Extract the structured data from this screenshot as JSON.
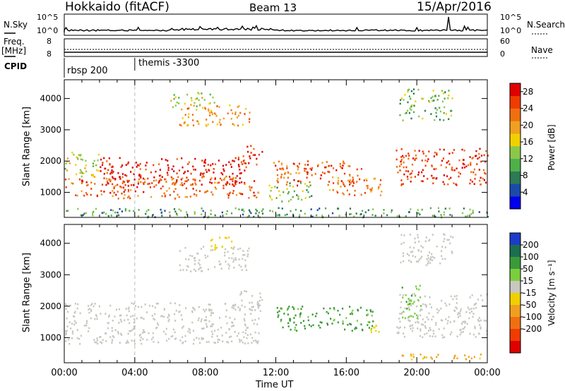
{
  "header": {
    "station": "Hokkaido (fitACF)",
    "beam": "Beam 13",
    "date": "15/Apr/2016"
  },
  "strip_labels": {
    "nsky": "N.Sky",
    "nsky_hi": "10^5",
    "nsky_lo": "10^0",
    "nsearch": "N.Search",
    "freq": "Freq.",
    "freq_unit": "[MHz]",
    "freq_hi": "8",
    "freq_lo": "8",
    "nave_hi": "60",
    "nave_lo": "0",
    "nave": "Nave",
    "cpid": "CPID",
    "cpid_1": "rbsp 200",
    "cpid_2": "themis -3300"
  },
  "chart_data": [
    {
      "type": "heatmap",
      "panel": "power",
      "ylabel": "Slant Range [km]",
      "xlabel": "",
      "x_range": [
        "00:00",
        "24:00"
      ],
      "ylim": [
        200,
        4600
      ],
      "y_ticks": [
        1000,
        2000,
        3000,
        4000
      ],
      "colorbar": {
        "label": "Power [dB]",
        "ticks": [
          4,
          8,
          12,
          16,
          20,
          24,
          28
        ],
        "range": [
          0,
          30
        ],
        "colors": [
          "#0000ee",
          "#1c4aa8",
          "#2d7a55",
          "#4fb04a",
          "#8ac84a",
          "#f0d000",
          "#f0a020",
          "#f07010",
          "#f03c00",
          "#e00000"
        ]
      },
      "regions": [
        {
          "t0": 0.0,
          "t1": 11.0,
          "r0": 800,
          "r1": 1500,
          "level": 24
        },
        {
          "t0": 0.0,
          "t1": 2.0,
          "r0": 1500,
          "r1": 2300,
          "level": 16
        },
        {
          "t0": 2.0,
          "t1": 10.2,
          "r0": 1200,
          "r1": 2100,
          "level": 28
        },
        {
          "t0": 9.8,
          "t1": 11.2,
          "r0": 1800,
          "r1": 2500,
          "level": 26
        },
        {
          "t0": 6.5,
          "t1": 10.5,
          "r0": 3100,
          "r1": 3800,
          "level": 20
        },
        {
          "t0": 6.0,
          "t1": 8.5,
          "r0": 3700,
          "r1": 4200,
          "level": 14
        },
        {
          "t0": 11.8,
          "t1": 17.0,
          "r0": 1200,
          "r1": 2000,
          "level": 24
        },
        {
          "t0": 15.0,
          "t1": 18.0,
          "r0": 900,
          "r1": 1500,
          "level": 22
        },
        {
          "t0": 11.5,
          "t1": 14.0,
          "r0": 700,
          "r1": 1300,
          "level": 12
        },
        {
          "t0": 18.8,
          "t1": 24.0,
          "r0": 1200,
          "r1": 2400,
          "level": 26
        },
        {
          "t0": 19.0,
          "t1": 22.0,
          "r0": 3300,
          "r1": 4300,
          "level": 12
        },
        {
          "t0": 0.0,
          "t1": 24.0,
          "r0": 200,
          "r1": 500,
          "level": 10
        }
      ]
    },
    {
      "type": "heatmap",
      "panel": "velocity",
      "ylabel": "Slant Range [km]",
      "xlabel": "Time UT",
      "x_range": [
        "00:00",
        "24:00"
      ],
      "x_ticks": [
        "00:00",
        "04:00",
        "08:00",
        "12:00",
        "16:00",
        "20:00",
        "00:00"
      ],
      "ylim": [
        200,
        4600
      ],
      "y_ticks": [
        1000,
        2000,
        3000,
        4000
      ],
      "colorbar": {
        "label": "Velocity [m s⁻¹]",
        "ticks": [
          200,
          100,
          50,
          15,
          -15,
          -50,
          -100,
          -200
        ],
        "colors": [
          "#1c3cc8",
          "#1c6e50",
          "#3a9a3a",
          "#7ccf3c",
          "#c8c8c0",
          "#f0d000",
          "#f0a020",
          "#f07010",
          "#f03c00",
          "#e00000"
        ]
      },
      "regions": [
        {
          "t0": 0.0,
          "t1": 11.0,
          "r0": 800,
          "r1": 2100,
          "level": 0
        },
        {
          "t0": 9.8,
          "t1": 11.2,
          "r0": 1800,
          "r1": 2500,
          "level": 0
        },
        {
          "t0": 6.5,
          "t1": 10.5,
          "r0": 3100,
          "r1": 3900,
          "level": 0
        },
        {
          "t0": 8.0,
          "t1": 9.5,
          "r0": 3800,
          "r1": 4200,
          "level": -30
        },
        {
          "t0": 12.0,
          "t1": 17.5,
          "r0": 1200,
          "r1": 2000,
          "level": 60
        },
        {
          "t0": 17.0,
          "t1": 18.0,
          "r0": 1100,
          "r1": 1400,
          "level": -30
        },
        {
          "t0": 18.8,
          "t1": 24.0,
          "r0": 1000,
          "r1": 2400,
          "level": 0
        },
        {
          "t0": 19.0,
          "t1": 20.2,
          "r0": 1600,
          "r1": 2700,
          "level": 40
        },
        {
          "t0": 19.0,
          "t1": 22.0,
          "r0": 3300,
          "r1": 4300,
          "level": 0
        },
        {
          "t0": 18.5,
          "t1": 24.0,
          "r0": 300,
          "r1": 500,
          "level": -60
        }
      ]
    }
  ]
}
